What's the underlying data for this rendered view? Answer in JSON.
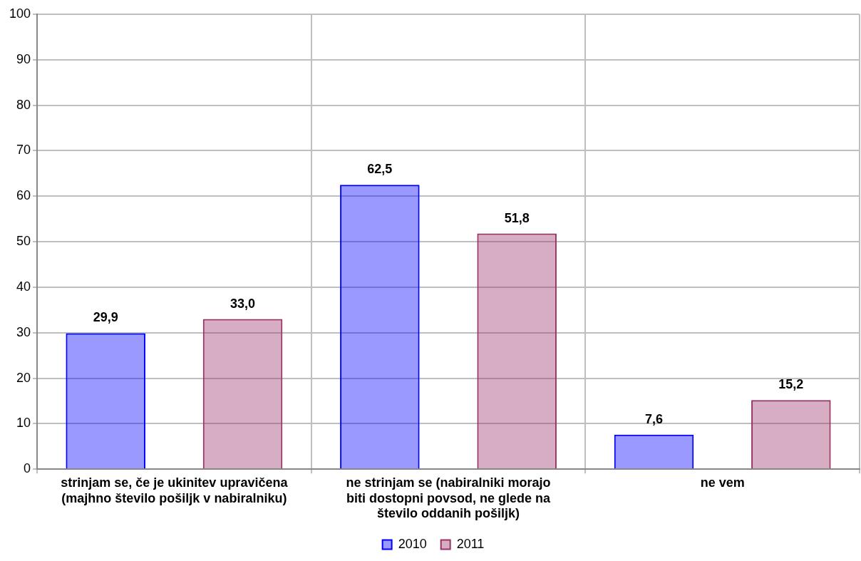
{
  "chart_data": {
    "type": "bar",
    "categories": [
      "strinjam se, če je ukinitev upravičena (majhno število pošiljk v nabiralniku)",
      "ne strinjam se (nabiralniki morajo biti dostopni povsod, ne glede na število oddanih pošiljk)",
      "ne vem"
    ],
    "series": [
      {
        "name": "2010",
        "color": "#0000ff",
        "values": [
          29.9,
          62.5,
          7.6
        ],
        "value_labels": [
          "29,9",
          "62,5",
          "7,6"
        ]
      },
      {
        "name": "2011",
        "color": "#993366",
        "values": [
          33.0,
          51.8,
          15.2
        ],
        "value_labels": [
          "33,0",
          "51,8",
          "15,2"
        ]
      }
    ],
    "ylim": [
      0,
      100
    ],
    "yticks": [
      0,
      10,
      20,
      30,
      40,
      50,
      60,
      70,
      80,
      90,
      100
    ],
    "grid": true,
    "legend": "bottom"
  }
}
